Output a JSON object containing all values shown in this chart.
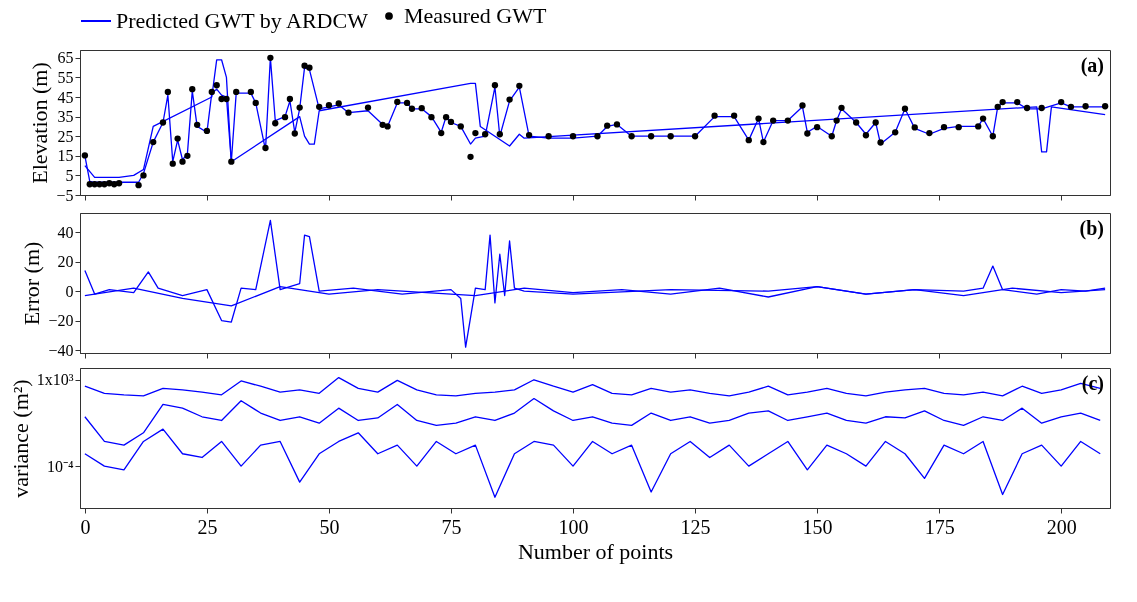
{
  "chart_data": [
    {
      "type": "line",
      "ylabel": "Elevation (m)",
      "xlim": [
        -1,
        210
      ],
      "xticks": [
        0,
        25,
        50,
        75,
        100,
        125,
        150,
        175,
        200
      ],
      "ylim": [
        -5,
        69
      ],
      "yticks": [
        -5,
        5,
        15,
        25,
        35,
        45,
        55,
        65
      ],
      "tick_labels": "y",
      "legend": "top",
      "annotations": [
        "(a)"
      ],
      "series": [
        {
          "name": "Predicted GWT by ARDCW",
          "color": "#0000ff",
          "x": [
            0,
            1,
            2,
            3,
            4,
            5,
            6,
            7,
            11,
            12,
            14,
            16,
            17,
            18,
            19,
            20,
            21,
            22,
            23,
            25,
            26,
            27,
            28,
            29,
            30,
            31,
            34,
            35,
            37,
            38,
            39,
            41,
            42,
            43,
            44,
            45,
            46,
            48,
            50,
            52,
            54,
            58,
            61,
            62,
            64,
            66,
            67,
            69,
            71,
            73,
            74,
            75,
            77,
            79,
            80,
            82,
            84,
            85,
            87,
            89,
            91,
            95,
            100,
            105,
            107,
            109,
            112,
            116,
            120,
            125,
            129,
            133,
            136,
            138,
            139,
            141,
            144,
            147,
            148,
            150,
            153,
            154,
            155,
            158,
            160,
            162,
            163,
            166,
            168,
            170,
            173,
            176,
            179,
            183,
            184,
            186,
            187,
            188,
            191,
            193,
            196,
            200,
            202,
            205,
            209
          ],
          "values": [
            15,
            2,
            1.5,
            1.5,
            1.5,
            1.5,
            1.5,
            1.5,
            1.5,
            6,
            22,
            32,
            46,
            12,
            23,
            13,
            16,
            48,
            30,
            27,
            47,
            49,
            46,
            45,
            12,
            47,
            47,
            42,
            18,
            65,
            33,
            35,
            43,
            27,
            39,
            60,
            59,
            39,
            40,
            41,
            37,
            38,
            31,
            30,
            42,
            42,
            39,
            39,
            35,
            27,
            35,
            32,
            30,
            21,
            24,
            25,
            50,
            25,
            43,
            50,
            25,
            24,
            24,
            25,
            30,
            31,
            25,
            25,
            25,
            25,
            35,
            35,
            23,
            34,
            22,
            33,
            33,
            40,
            27,
            30,
            25,
            33,
            39,
            32,
            26,
            32,
            21,
            27,
            39,
            29,
            26,
            29,
            30,
            30,
            34,
            25,
            40,
            42,
            42,
            39,
            39,
            42,
            40,
            40,
            40
          ]
        },
        {
          "color": "#0000ff",
          "x": [
            0,
            2,
            7,
            10,
            12,
            14,
            26,
            27,
            28,
            29,
            30,
            44,
            45,
            46,
            47,
            48,
            79,
            80,
            81,
            84,
            87,
            89,
            90,
            195,
            196,
            197,
            198,
            209
          ],
          "values": [
            10,
            4,
            4,
            5,
            8,
            30,
            45,
            64,
            64,
            55,
            12,
            35,
            25,
            21,
            21,
            38,
            52,
            52,
            30,
            25,
            20,
            26,
            24,
            40,
            17,
            17,
            40,
            36
          ]
        },
        {
          "name": "Measured GWT",
          "type": "scatter",
          "color": "#000000",
          "x": [
            0,
            1,
            2,
            3,
            4,
            5,
            6,
            7,
            11,
            12,
            14,
            16,
            17,
            18,
            19,
            20,
            21,
            22,
            23,
            25,
            26,
            27,
            28,
            29,
            30,
            31,
            34,
            35,
            37,
            38,
            39,
            41,
            42,
            43,
            44,
            45,
            46,
            48,
            50,
            52,
            54,
            58,
            61,
            62,
            64,
            66,
            67,
            69,
            71,
            73,
            74,
            75,
            77,
            79,
            80,
            82,
            84,
            85,
            87,
            89,
            91,
            95,
            100,
            105,
            107,
            109,
            112,
            116,
            120,
            125,
            129,
            133,
            136,
            138,
            139,
            141,
            144,
            147,
            148,
            150,
            153,
            154,
            155,
            158,
            160,
            162,
            163,
            166,
            168,
            170,
            173,
            176,
            179,
            183,
            184,
            186,
            187,
            188,
            191,
            193,
            196,
            200,
            202,
            205,
            209
          ],
          "values": [
            15.2,
            0.5,
            0.5,
            0.5,
            0.5,
            1,
            0.5,
            1,
            0,
            5,
            22,
            32,
            47.6,
            11,
            23.8,
            12,
            15,
            49,
            30.8,
            27.7,
            47.6,
            51,
            44,
            44,
            12,
            47.6,
            47.6,
            42,
            19,
            65,
            31.6,
            34.7,
            44,
            26.4,
            39.6,
            61,
            60,
            40,
            40.8,
            41.7,
            37,
            39.6,
            30.8,
            30,
            42.5,
            42,
            39,
            39.3,
            34.7,
            26.6,
            34.7,
            32.3,
            30,
            14.5,
            26.6,
            26,
            51,
            26,
            43.7,
            50.7,
            25.6,
            25,
            25,
            25,
            30.4,
            31,
            25,
            25,
            25,
            25,
            35.5,
            35.5,
            23,
            34,
            22,
            33,
            33,
            40.7,
            26.4,
            29.6,
            25,
            33,
            39.5,
            32,
            25.5,
            32,
            21.8,
            27,
            39,
            29.5,
            26.6,
            29.6,
            29.6,
            30,
            34,
            25,
            40,
            42.4,
            42.4,
            39.4,
            39.4,
            42.4,
            40,
            40.3,
            40.3
          ]
        }
      ]
    },
    {
      "type": "line",
      "ylabel": "Error (m)",
      "xlim": [
        -1,
        210
      ],
      "xticks": [
        0,
        25,
        50,
        75,
        100,
        125,
        150,
        175,
        200
      ],
      "ylim": [
        -42,
        53
      ],
      "yticks": [
        -40,
        -20,
        0,
        20,
        40
      ],
      "tick_labels": "y",
      "annotations": [
        "(b)"
      ],
      "series": [
        {
          "color": "#0000ff",
          "x": [
            0,
            2,
            5,
            10,
            13,
            15,
            20,
            25,
            28,
            30,
            32,
            35,
            38,
            40,
            44,
            45,
            46,
            48,
            55,
            65,
            75,
            77,
            78,
            80,
            82,
            83,
            84,
            85,
            86,
            87,
            88,
            90,
            100,
            120,
            140,
            150,
            160,
            170,
            180,
            184,
            186,
            188,
            195,
            200,
            205,
            209
          ],
          "values": [
            14,
            -2,
            1,
            -1,
            13,
            2,
            -3,
            1,
            -20,
            -21,
            2,
            1,
            48,
            1,
            5,
            38,
            37,
            0,
            2,
            -2,
            1,
            -5,
            -38,
            2,
            1,
            38,
            -8,
            25,
            -3,
            34,
            2,
            0,
            -2,
            1,
            0,
            3,
            -2,
            1,
            0,
            2,
            17,
            1,
            -2,
            1,
            0,
            2
          ]
        },
        {
          "color": "#0000ff",
          "x": [
            0,
            10,
            20,
            30,
            40,
            50,
            60,
            70,
            80,
            90,
            100,
            110,
            120,
            130,
            140,
            150,
            160,
            170,
            180,
            190,
            200,
            209
          ],
          "values": [
            -3,
            2,
            -5,
            -10,
            3,
            -2,
            1,
            -1,
            -3,
            2,
            -1,
            1,
            -2,
            2,
            -4,
            3,
            -2,
            1,
            -3,
            2,
            -1,
            1
          ]
        }
      ]
    },
    {
      "type": "line",
      "xlabel": "Number of points",
      "ylabel": "variance (m²)",
      "log": true,
      "xlim": [
        -1,
        210
      ],
      "xticks": [
        0,
        25,
        50,
        75,
        100,
        125,
        150,
        175,
        200
      ],
      "ylim": [
        4e-08,
        9000
      ],
      "yticks": [
        {
          "value": 1000,
          "label": "1x10³"
        },
        {
          "value": 0.0001,
          "label": "10⁻⁴"
        }
      ],
      "annotations": [
        "(c)"
      ],
      "x": [
        0,
        4,
        8,
        12,
        16,
        20,
        24,
        28,
        32,
        36,
        40,
        44,
        48,
        52,
        56,
        60,
        64,
        68,
        72,
        76,
        80,
        84,
        88,
        92,
        96,
        100,
        104,
        108,
        112,
        116,
        120,
        124,
        128,
        132,
        136,
        140,
        144,
        148,
        152,
        156,
        160,
        164,
        168,
        172,
        176,
        180,
        184,
        188,
        192,
        196,
        200,
        204,
        208
      ],
      "series": [
        {
          "color": "#0000ff",
          "values": [
            300,
            80,
            60,
            50,
            200,
            150,
            100,
            60,
            800,
            300,
            100,
            150,
            80,
            1500,
            200,
            100,
            900,
            150,
            60,
            50,
            80,
            100,
            150,
            1000,
            300,
            100,
            400,
            80,
            60,
            200,
            100,
            150,
            80,
            50,
            100,
            300,
            60,
            100,
            200,
            80,
            50,
            100,
            150,
            200,
            80,
            60,
            100,
            50,
            300,
            80,
            150,
            500,
            200
          ]
        },
        {
          "color": "#0000ff",
          "values": [
            1,
            0.01,
            0.005,
            0.05,
            10,
            5,
            1,
            0.5,
            20,
            2,
            0.5,
            1,
            0.3,
            5,
            0.5,
            0.8,
            10,
            0.5,
            0.2,
            0.3,
            1,
            0.5,
            2,
            30,
            3,
            0.5,
            1,
            0.3,
            0.2,
            2,
            0.5,
            1,
            0.3,
            0.5,
            2,
            3,
            0.5,
            1,
            2,
            0.5,
            0.3,
            1,
            0.8,
            3,
            0.5,
            0.2,
            1,
            0.5,
            5,
            0.3,
            1,
            2,
            0.5
          ]
        },
        {
          "color": "#0000ff",
          "values": [
            0.001,
            0.0001,
            5e-05,
            0.01,
            0.1,
            0.001,
            0.0005,
            0.01,
            0.0001,
            0.005,
            0.01,
            5e-06,
            0.001,
            0.01,
            0.05,
            0.001,
            0.005,
            0.0001,
            0.01,
            0.001,
            0.005,
            3e-07,
            0.001,
            0.01,
            0.005,
            0.0001,
            0.01,
            0.001,
            0.005,
            8e-07,
            0.001,
            0.01,
            0.0005,
            0.005,
            0.0001,
            0.001,
            0.01,
            5e-05,
            0.005,
            0.001,
            0.0001,
            0.01,
            0.001,
            1e-05,
            0.005,
            0.001,
            0.01,
            5e-07,
            0.001,
            0.005,
            0.0001,
            0.01,
            0.001
          ]
        }
      ]
    }
  ]
}
